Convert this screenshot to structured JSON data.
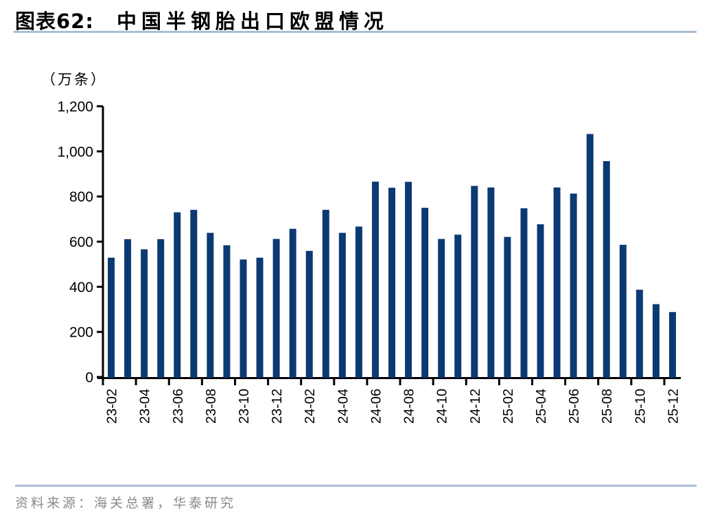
{
  "header": {
    "figure_label": "图表62:",
    "title": "中国半钢胎出口欧盟情况"
  },
  "chart_data": {
    "type": "bar",
    "title": "中国半钢胎出口欧盟情况",
    "unit_label": "（万条）",
    "xlabel": "",
    "ylabel": "万条",
    "ylim": [
      0,
      1200
    ],
    "grid": false,
    "legend": "none",
    "bar_color": "#0b3a73",
    "categories": [
      "23-02",
      "23-03",
      "23-04",
      "23-05",
      "23-06",
      "23-07",
      "23-08",
      "23-09",
      "23-10",
      "23-11",
      "23-12",
      "24-01",
      "24-02",
      "24-03",
      "24-04",
      "24-05",
      "24-06",
      "24-07",
      "24-08",
      "24-09",
      "24-10",
      "24-11",
      "24-12",
      "25-01",
      "25-02",
      "25-03",
      "25-04",
      "25-05",
      "25-06",
      "25-07",
      "25-08",
      "25-09",
      "25-10",
      "25-11",
      "25-12"
    ],
    "values": [
      529,
      611,
      566,
      611,
      730,
      741,
      639,
      584,
      521,
      529,
      612,
      657,
      559,
      741,
      639,
      667,
      866,
      839,
      865,
      750,
      612,
      631,
      847,
      840,
      621,
      748,
      677,
      840,
      813,
      1077,
      957,
      586,
      387,
      323,
      288
    ],
    "xtick_labels": [
      "23-02",
      "23-04",
      "23-06",
      "23-08",
      "23-10",
      "23-12",
      "24-02",
      "24-04",
      "24-06",
      "24-08",
      "24-10",
      "24-12",
      "25-02",
      "25-04",
      "25-06",
      "25-08",
      "25-10",
      "25-12"
    ],
    "ytick_values": [
      0,
      200,
      400,
      600,
      800,
      1000,
      1200
    ],
    "ytick_labels": [
      "0",
      "200",
      "400",
      "600",
      "800",
      "1,000",
      "1,200"
    ]
  },
  "footer": {
    "source": "资料来源：海关总署，华泰研究"
  },
  "colors": {
    "bar": "#0b3a73",
    "accent_rule": "#a8bdd2",
    "source_text": "#8a8a8a",
    "axis": "#000000"
  }
}
